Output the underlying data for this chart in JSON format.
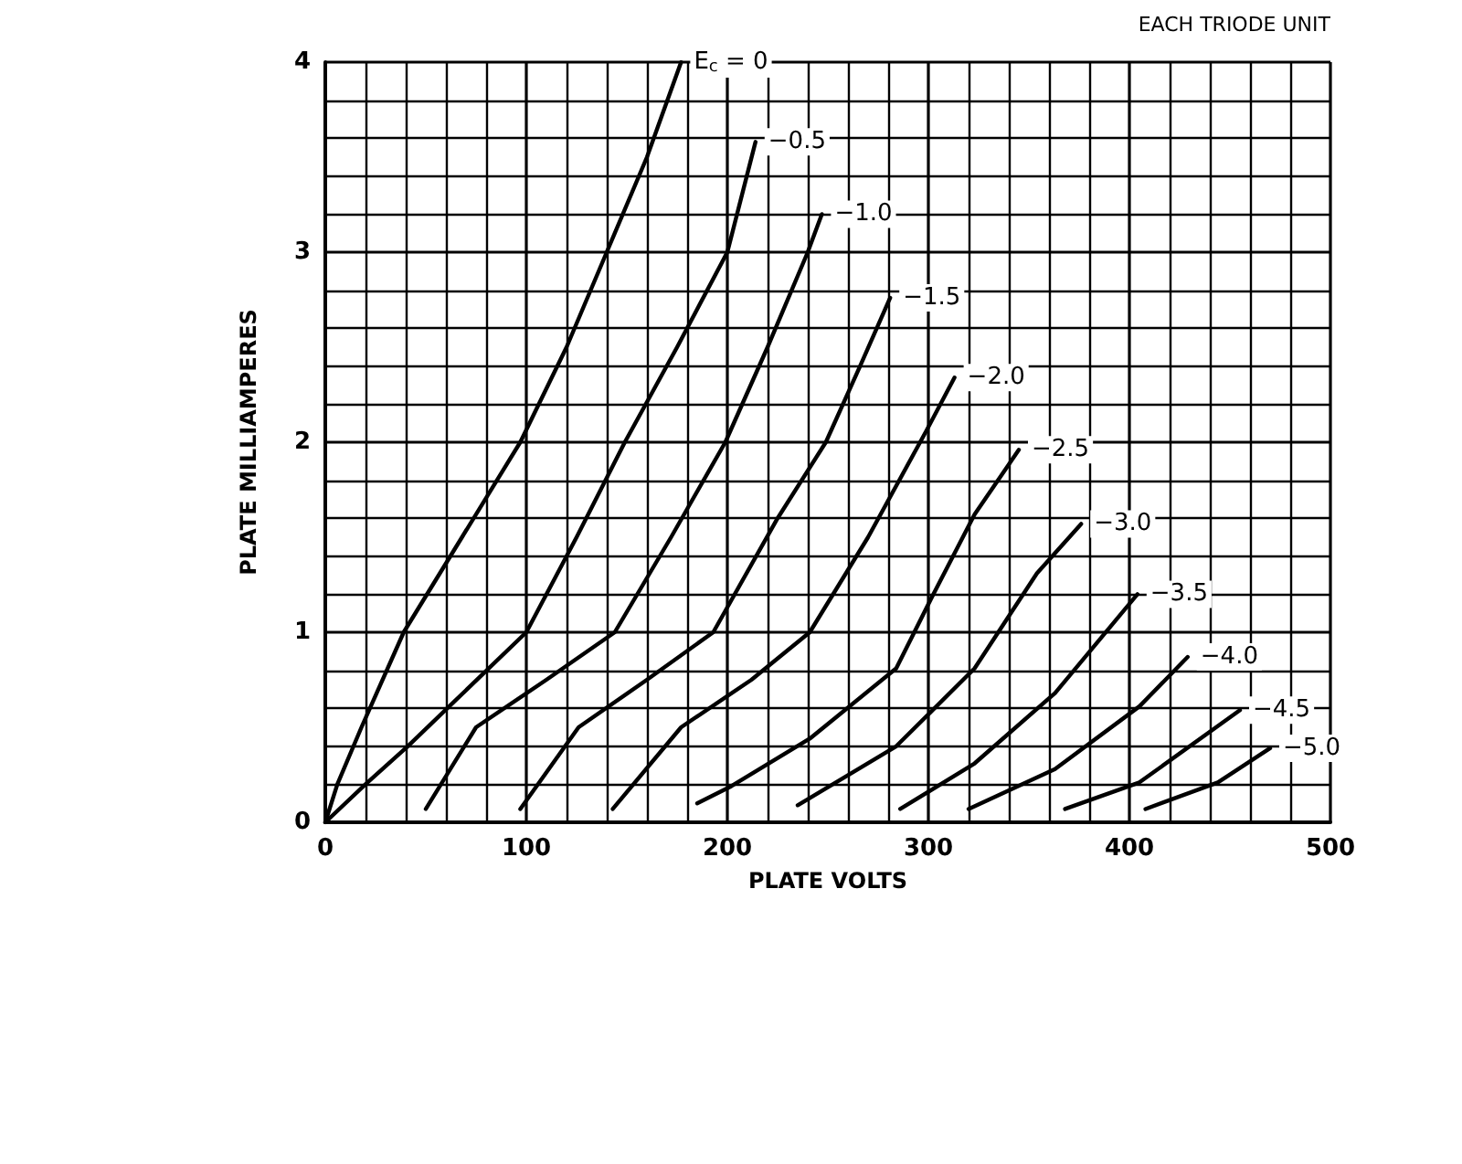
{
  "chart_data": {
    "type": "line",
    "xlabel": "PLATE VOLTS",
    "ylabel": "PLATE MILLIAMPERES",
    "annotations": [
      "EACH TRIODE UNIT"
    ],
    "xlim": [
      0,
      500
    ],
    "ylim": [
      0,
      4
    ],
    "xticks": [
      0,
      100,
      200,
      300,
      400,
      500
    ],
    "yticks": [
      0,
      1,
      2,
      3,
      4
    ],
    "grid": true,
    "legend": false,
    "marker": "none",
    "line_style": "solid",
    "series": [
      {
        "name": "E$_{c}$ = 0",
        "color": "#000000",
        "x": [
          0,
          6,
          18,
          39,
          68,
          97,
          120,
          140,
          160,
          177
        ],
        "values": [
          0,
          0.2,
          0.5,
          1,
          1.5,
          2,
          2.5,
          3,
          3.5,
          4
        ]
      },
      {
        "name": "−0.5",
        "color": "#000000",
        "x": [
          0,
          20,
          41,
          100,
          125,
          149,
          175,
          200,
          214
        ],
        "values": [
          0,
          0.2,
          0.4,
          1,
          1.5,
          2,
          2.5,
          3,
          3.58
        ]
      },
      {
        "name": "−1.0",
        "color": "#000000",
        "x": [
          50,
          75,
          110,
          144,
          172,
          199,
          220,
          240,
          247
        ],
        "values": [
          0.07,
          0.5,
          0.75,
          1,
          1.5,
          2,
          2.5,
          3,
          3.2
        ]
      },
      {
        "name": "−1.5",
        "color": "#000000",
        "x": [
          97,
          126,
          160,
          193,
          225,
          249,
          266,
          281
        ],
        "values": [
          0.07,
          0.5,
          0.75,
          1,
          1.6,
          2,
          2.4,
          2.76
        ]
      },
      {
        "name": "−2.0",
        "color": "#000000",
        "x": [
          143,
          177,
          212,
          241,
          270,
          299,
          313
        ],
        "values": [
          0.07,
          0.5,
          0.75,
          1,
          1.5,
          2.06,
          2.34
        ]
      },
      {
        "name": "−2.5",
        "color": "#000000",
        "x": [
          185,
          202,
          241,
          284,
          302,
          323,
          345
        ],
        "values": [
          0.1,
          0.19,
          0.44,
          0.81,
          1.19,
          1.62,
          1.96
        ]
      },
      {
        "name": "−3.0",
        "color": "#000000",
        "x": [
          235,
          284,
          323,
          354,
          376
        ],
        "values": [
          0.09,
          0.4,
          0.81,
          1.31,
          1.57
        ]
      },
      {
        "name": "−3.5",
        "color": "#000000",
        "x": [
          286,
          323,
          363,
          404
        ],
        "values": [
          0.07,
          0.31,
          0.68,
          1.2
        ]
      },
      {
        "name": "−4.0",
        "color": "#000000",
        "x": [
          320,
          363,
          405,
          429
        ],
        "values": [
          0.07,
          0.28,
          0.61,
          0.87
        ]
      },
      {
        "name": "−4.5",
        "color": "#000000",
        "x": [
          368,
          405,
          455
        ],
        "values": [
          0.07,
          0.21,
          0.59
        ]
      },
      {
        "name": "−5.0",
        "color": "#000000",
        "x": [
          408,
          444,
          470
        ],
        "values": [
          0.07,
          0.21,
          0.39
        ]
      }
    ]
  }
}
